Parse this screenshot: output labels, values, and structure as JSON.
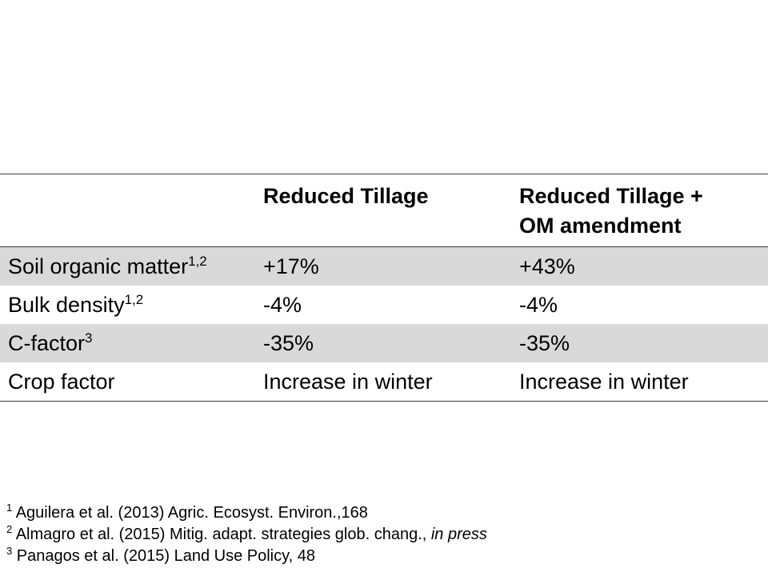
{
  "table": {
    "headers": {
      "col1": "",
      "col2": "Reduced Tillage",
      "col3_line1": "Reduced Tillage +",
      "col3_line2": "OM amendment"
    },
    "rows": [
      {
        "label": "Soil organic matter",
        "sup": "1,2",
        "reduced_tillage": "+17%",
        "reduced_tillage_om": "+43%",
        "shaded": true
      },
      {
        "label": "Bulk density",
        "sup": "1,2",
        "reduced_tillage": "-4%",
        "reduced_tillage_om": "-4%",
        "shaded": false
      },
      {
        "label": "C-factor",
        "sup": "3",
        "reduced_tillage": "-35%",
        "reduced_tillage_om": "-35%",
        "shaded": true
      },
      {
        "label": "Crop factor",
        "sup": "",
        "reduced_tillage": "Increase in winter",
        "reduced_tillage_om": "Increase in winter",
        "shaded": false
      }
    ],
    "shade_color": "#d9d9d9",
    "rule_color": "#3a3a3a"
  },
  "references": [
    {
      "num": "1",
      "text": "Aguilera et al. (2013) Agric. Ecosyst. Environ.,168",
      "italic": ""
    },
    {
      "num": "2",
      "text": "Almagro et al. (2015) Mitig. adapt. strategies glob. chang., ",
      "italic": "in press"
    },
    {
      "num": "3",
      "text": "Panagos et al. (2015) Land Use Policy, 48",
      "italic": ""
    }
  ]
}
